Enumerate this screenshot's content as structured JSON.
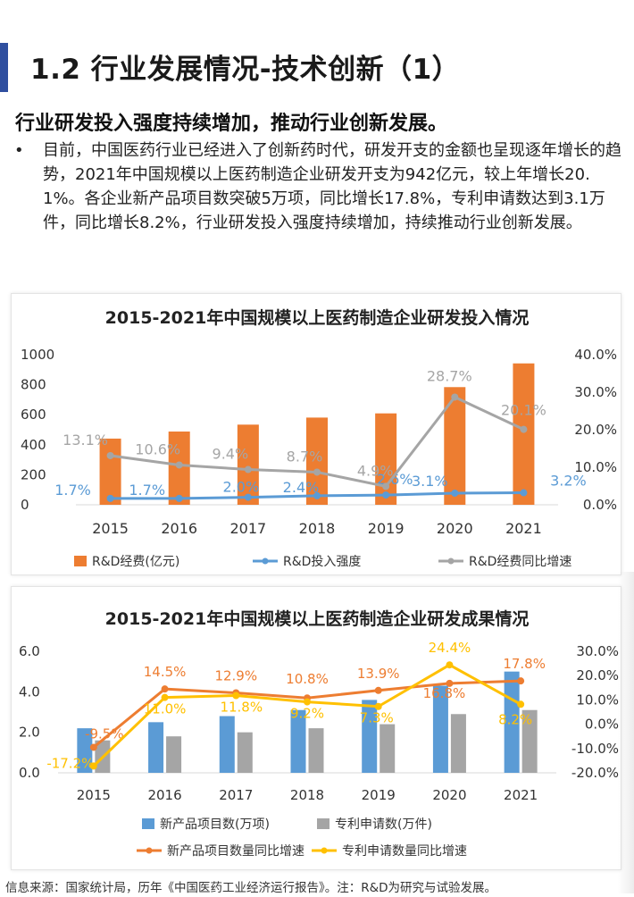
{
  "page": {
    "title": "1.2 行业发展情况-技术创新（1）",
    "subtitle": "行业研发投入强度持续增加，推动行业创新发展。",
    "bullet_symbol": "•",
    "bullet_text": "目前，中国医药行业已经进入了创新药时代，研发开支的金额也呈现逐年增长的趋势，2021年中国规模以上医药制造企业研发开支为942亿元，较上年增长20.1%。各企业新产品项目数突破5万项，同比增长17.8%，专利申请数达到3.1万件，同比增长8.2%，行业研发投入强度持续增加，持续推动行业创新发展。",
    "footer": "信息来源：国家统计局，历年《中国医药工业经济运行报告》。注：R&D为研究与试验发展。",
    "colors": {
      "accent_bar": "#2f4f9f",
      "orange": "#ed7d31",
      "blue": "#5b9bd5",
      "gray": "#a5a5a5",
      "yellow": "#ffc000",
      "bar_blue": "#5b9bd5",
      "bar_gray": "#a5a5a5"
    }
  },
  "chart_data": [
    {
      "type": "bar",
      "title": "2015-2021年中国规模以上医药制造企业研发投入情况",
      "categories": [
        "2015",
        "2016",
        "2017",
        "2018",
        "2019",
        "2020",
        "2021"
      ],
      "left_axis": {
        "ticks": [
          "0",
          "200",
          "400",
          "600",
          "800",
          "1000"
        ],
        "min": 0,
        "max": 1000
      },
      "right_axis": {
        "ticks": [
          "0.0%",
          "10.0%",
          "20.0%",
          "30.0%",
          "40.0%"
        ],
        "min": 0,
        "max": 40
      },
      "series": [
        {
          "name": "R&D经费(亿元)",
          "kind": "bar",
          "axis": "left",
          "color": "#ed7d31",
          "values": [
            441,
            488,
            534,
            581,
            609,
            784,
            942
          ]
        },
        {
          "name": "R&D投入强度",
          "kind": "line",
          "axis": "right",
          "color": "#5b9bd5",
          "values": [
            1.7,
            1.7,
            2.0,
            2.4,
            2.6,
            3.1,
            3.2
          ],
          "labels": [
            "1.7%",
            "1.7%",
            "2.0%",
            "2.4%",
            "2.6%",
            "3.1%",
            "3.2%"
          ]
        },
        {
          "name": "R&D经费同比增速",
          "kind": "line",
          "axis": "right",
          "color": "#a5a5a5",
          "values": [
            13.1,
            10.6,
            9.4,
            8.7,
            4.9,
            28.7,
            20.1
          ],
          "labels": [
            "13.1%",
            "10.6%",
            "9.4%",
            "8.7%",
            "4.9%",
            "28.7%",
            "20.1%"
          ]
        }
      ],
      "legend_position": "bottom",
      "grid": false
    },
    {
      "type": "bar",
      "title": "2015-2021年中国规模以上医药制造企业研发成果情况",
      "categories": [
        "2015",
        "2016",
        "2017",
        "2018",
        "2019",
        "2020",
        "2021"
      ],
      "left_axis": {
        "ticks": [
          "0.0",
          "2.0",
          "4.0",
          "6.0"
        ],
        "min": 0,
        "max": 6
      },
      "right_axis": {
        "ticks": [
          "-20.0%",
          "-10.0%",
          "0.0%",
          "10.0%",
          "20.0%",
          "30.0%"
        ],
        "min": -20,
        "max": 30
      },
      "series": [
        {
          "name": "新产品项目数(万项)",
          "kind": "bar",
          "axis": "left",
          "color": "#5b9bd5",
          "values": [
            2.2,
            2.5,
            2.8,
            3.1,
            3.6,
            4.3,
            5.0
          ]
        },
        {
          "name": "专利申请数(万件)",
          "kind": "bar",
          "axis": "left",
          "color": "#a5a5a5",
          "values": [
            1.6,
            1.8,
            2.0,
            2.2,
            2.4,
            2.9,
            3.1
          ]
        },
        {
          "name": "新产品项目数量同比增速",
          "kind": "line",
          "axis": "right",
          "color": "#ed7d31",
          "values": [
            -9.5,
            14.5,
            12.9,
            10.8,
            13.9,
            16.8,
            17.8
          ],
          "labels": [
            "-9.5%",
            "14.5%",
            "12.9%",
            "10.8%",
            "13.9%",
            "16.8%",
            "17.8%"
          ]
        },
        {
          "name": "专利申请数量同比增速",
          "kind": "line",
          "axis": "right",
          "color": "#ffc000",
          "values": [
            -17.2,
            11.0,
            11.8,
            9.2,
            7.3,
            24.4,
            8.2
          ],
          "labels": [
            "-17.2%",
            "11.0%",
            "11.8%",
            "9.2%",
            "7.3%",
            "24.4%",
            "8.2%"
          ]
        }
      ],
      "legend_position": "bottom",
      "grid": false
    }
  ]
}
